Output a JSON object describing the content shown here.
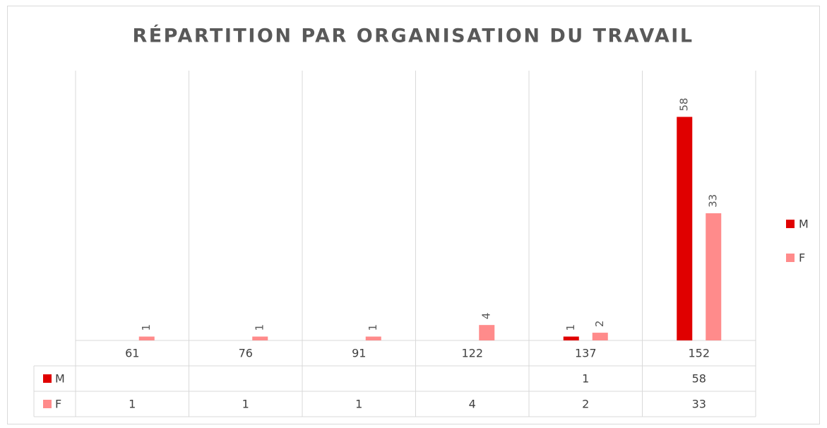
{
  "chart_data": {
    "type": "bar",
    "title": "RÉPARTITION PAR ORGANISATION DU TRAVAIL",
    "categories": [
      "61",
      "76",
      "91",
      "122",
      "137",
      "152"
    ],
    "series": [
      {
        "name": "M",
        "color": "#e00000",
        "values": [
          null,
          null,
          null,
          null,
          1,
          58
        ]
      },
      {
        "name": "F",
        "color": "#ff8b8b",
        "values": [
          1,
          1,
          1,
          4,
          2,
          33
        ]
      }
    ],
    "ylim": [
      0,
      70
    ],
    "legend": "right",
    "data_table": true
  }
}
